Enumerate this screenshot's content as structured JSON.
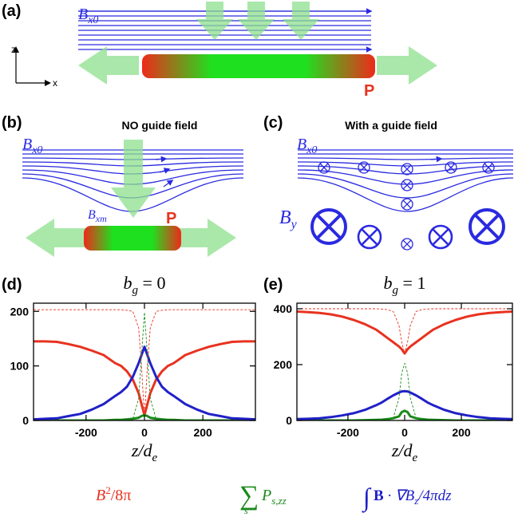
{
  "panels": {
    "a": "(a)",
    "b": "(b)",
    "c": "(c)",
    "d": "(d)",
    "e": "(e)"
  },
  "schematic": {
    "bx0": [
      "B",
      "x0"
    ],
    "bxm": [
      "B",
      "xm"
    ],
    "by": [
      "B",
      "y"
    ],
    "p": "P",
    "z": "z",
    "x": "x",
    "b_title": "NO guide field",
    "c_title": "With a guide field"
  },
  "chart_data": [
    {
      "type": "line",
      "title": [
        "b",
        "g",
        " = 0"
      ],
      "xlabel": [
        "z/d",
        "e"
      ],
      "x": [
        -380,
        -340,
        -300,
        -260,
        -220,
        -180,
        -140,
        -100,
        -80,
        -60,
        -40,
        -20,
        -10,
        0,
        10,
        20,
        40,
        60,
        80,
        100,
        140,
        180,
        220,
        260,
        300,
        340,
        380
      ],
      "xlim": [
        -380,
        380
      ],
      "xticks": [
        -200,
        0,
        200
      ],
      "ylim": [
        0,
        215
      ],
      "yticks": [
        0,
        100,
        200
      ],
      "series": [
        {
          "name": [
            "B",
            "2",
            "/8π"
          ],
          "color": "#e8321f",
          "style": "solid",
          "values": [
            145,
            145,
            144,
            140,
            135,
            128,
            120,
            105,
            100,
            90,
            75,
            50,
            30,
            10,
            30,
            50,
            75,
            90,
            100,
            105,
            120,
            128,
            135,
            140,
            144,
            145,
            145
          ]
        },
        {
          "name": [
            "∑",
            "s",
            "P",
            "s,zz"
          ],
          "color": "#1a8a1a",
          "style": "solid",
          "values": [
            0,
            0,
            0,
            0,
            0,
            0,
            0,
            1,
            1,
            2,
            3,
            5,
            8,
            10,
            8,
            5,
            3,
            2,
            1,
            1,
            0,
            0,
            0,
            0,
            0,
            0,
            0
          ]
        },
        {
          "name": [
            "∫",
            "B",
            " · ∇B",
            "z",
            "/4πdz"
          ],
          "color": "#2020c8",
          "style": "solid",
          "values": [
            2,
            3,
            4,
            8,
            12,
            20,
            30,
            45,
            52,
            62,
            80,
            105,
            120,
            135,
            120,
            105,
            80,
            62,
            52,
            45,
            30,
            20,
            12,
            8,
            4,
            3,
            2
          ]
        },
        {
          "color": "#e8321f",
          "style": "dashed",
          "values": [
            203,
            203,
            203,
            203,
            203,
            203,
            203,
            203,
            203,
            202,
            200,
            170,
            100,
            5,
            100,
            170,
            200,
            202,
            203,
            203,
            203,
            203,
            203,
            203,
            203,
            203,
            203
          ]
        },
        {
          "color": "#1a8a1a",
          "style": "dashed",
          "values": [
            0,
            0,
            0,
            0,
            0,
            0,
            0,
            0,
            0,
            0,
            3,
            40,
            120,
            198,
            120,
            40,
            3,
            0,
            0,
            0,
            0,
            0,
            0,
            0,
            0,
            0,
            0
          ]
        }
      ]
    },
    {
      "type": "line",
      "title": [
        "b",
        "g",
        " = 1"
      ],
      "xlabel": [
        "z/d",
        "e"
      ],
      "x": [
        -380,
        -340,
        -300,
        -260,
        -220,
        -180,
        -140,
        -100,
        -80,
        -60,
        -40,
        -20,
        -10,
        0,
        10,
        20,
        40,
        60,
        80,
        100,
        140,
        180,
        220,
        260,
        300,
        340,
        380
      ],
      "xlim": [
        -380,
        380
      ],
      "xticks": [
        -200,
        0,
        200
      ],
      "ylim": [
        0,
        420
      ],
      "yticks": [
        0,
        200,
        400
      ],
      "series": [
        {
          "color": "#e8321f",
          "style": "solid",
          "values": [
            390,
            388,
            385,
            380,
            372,
            360,
            345,
            325,
            310,
            295,
            280,
            265,
            255,
            240,
            255,
            265,
            280,
            295,
            310,
            325,
            345,
            360,
            372,
            380,
            385,
            388,
            390
          ]
        },
        {
          "color": "#1a8a1a",
          "style": "solid",
          "values": [
            0,
            0,
            0,
            0,
            0,
            0,
            1,
            2,
            3,
            5,
            8,
            15,
            30,
            35,
            30,
            15,
            8,
            5,
            3,
            2,
            1,
            0,
            0,
            0,
            0,
            0,
            0
          ]
        },
        {
          "color": "#2020c8",
          "style": "solid",
          "values": [
            5,
            6,
            8,
            12,
            18,
            26,
            38,
            55,
            65,
            78,
            90,
            100,
            104,
            105,
            104,
            100,
            90,
            78,
            65,
            55,
            38,
            26,
            18,
            12,
            8,
            6,
            5
          ]
        },
        {
          "color": "#e8321f",
          "style": "dashed",
          "values": [
            400,
            400,
            400,
            400,
            400,
            400,
            400,
            400,
            399,
            397,
            390,
            340,
            280,
            240,
            280,
            340,
            390,
            397,
            399,
            400,
            400,
            400,
            400,
            400,
            400,
            400,
            400
          ]
        },
        {
          "color": "#1a8a1a",
          "style": "dashed",
          "values": [
            0,
            0,
            0,
            0,
            0,
            0,
            0,
            0,
            0,
            2,
            10,
            80,
            170,
            205,
            170,
            80,
            10,
            2,
            0,
            0,
            0,
            0,
            0,
            0,
            0,
            0,
            0
          ]
        }
      ]
    }
  ]
}
